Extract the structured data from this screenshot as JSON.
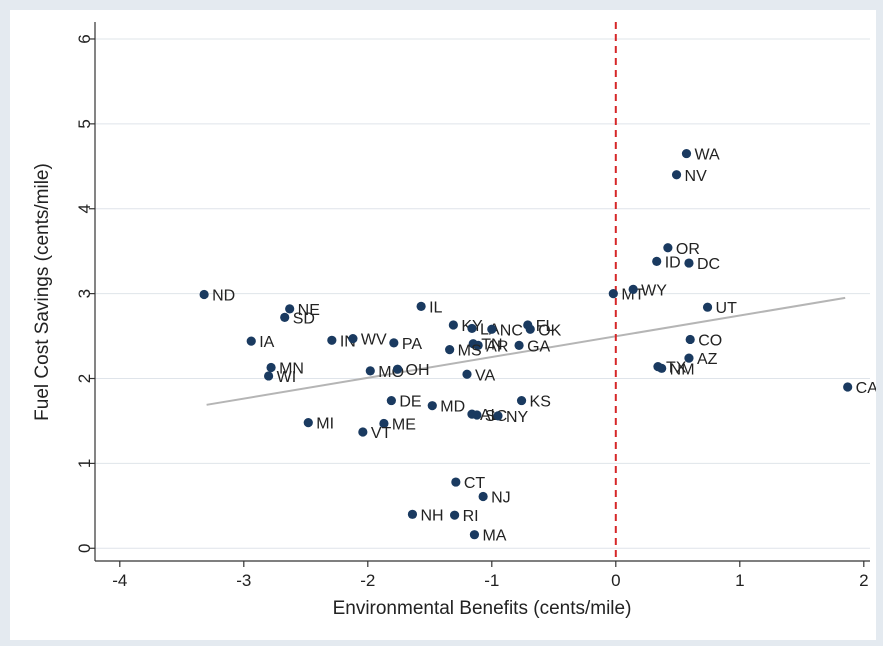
{
  "chart_data": {
    "type": "scatter",
    "title": "",
    "xlabel": "Environmental Benefits (cents/mile)",
    "ylabel": "Fuel Cost Savings (cents/mile)",
    "xlim": [
      -4.2,
      2.05
    ],
    "ylim": [
      -0.15,
      6.2
    ],
    "xticks": [
      "-4",
      "-3",
      "-2",
      "-1",
      "0",
      "1",
      "2"
    ],
    "yticks": [
      "0",
      "1",
      "2",
      "3",
      "4",
      "5",
      "6"
    ],
    "grid": "horizontal",
    "legend": "none",
    "reference_line": {
      "x": 0,
      "style": "dashed",
      "color": "#d62728"
    },
    "fit_line": {
      "x": [
        -3.3,
        1.85
      ],
      "y": [
        1.69,
        2.95
      ],
      "color": "#b5b5b5"
    },
    "colors": {
      "marker": "#1a3a60",
      "grid": "#dfe4ea",
      "axis": "#333333"
    },
    "points": [
      {
        "label": "ND",
        "x": -3.32,
        "y": 2.99
      },
      {
        "label": "NE",
        "x": -2.63,
        "y": 2.82
      },
      {
        "label": "SD",
        "x": -2.67,
        "y": 2.72
      },
      {
        "label": "IA",
        "x": -2.94,
        "y": 2.44
      },
      {
        "label": "MN",
        "x": -2.78,
        "y": 2.13
      },
      {
        "label": "WI",
        "x": -2.8,
        "y": 2.03
      },
      {
        "label": "IN",
        "x": -2.29,
        "y": 2.45
      },
      {
        "label": "WV",
        "x": -2.12,
        "y": 2.47
      },
      {
        "label": "PA",
        "x": -1.79,
        "y": 2.42
      },
      {
        "label": "MO",
        "x": -1.98,
        "y": 2.09
      },
      {
        "label": "OH",
        "x": -1.76,
        "y": 2.11
      },
      {
        "label": "IL",
        "x": -1.57,
        "y": 2.85
      },
      {
        "label": "KY",
        "x": -1.31,
        "y": 2.63
      },
      {
        "label": "LA",
        "x": -1.16,
        "y": 2.59
      },
      {
        "label": "NC",
        "x": -1.0,
        "y": 2.58
      },
      {
        "label": "FL",
        "x": -0.71,
        "y": 2.63
      },
      {
        "label": "OK",
        "x": -0.69,
        "y": 2.58
      },
      {
        "label": "TN",
        "x": -1.15,
        "y": 2.41
      },
      {
        "label": "AR",
        "x": -1.11,
        "y": 2.39
      },
      {
        "label": "MS",
        "x": -1.34,
        "y": 2.34
      },
      {
        "label": "GA",
        "x": -0.78,
        "y": 2.39
      },
      {
        "label": "VA",
        "x": -1.2,
        "y": 2.05
      },
      {
        "label": "DE",
        "x": -1.81,
        "y": 1.74
      },
      {
        "label": "MD",
        "x": -1.48,
        "y": 1.68
      },
      {
        "label": "KS",
        "x": -0.76,
        "y": 1.74
      },
      {
        "label": "AL",
        "x": -1.16,
        "y": 1.58
      },
      {
        "label": "SC",
        "x": -1.12,
        "y": 1.57
      },
      {
        "label": "NY",
        "x": -0.95,
        "y": 1.56
      },
      {
        "label": "ME",
        "x": -1.87,
        "y": 1.47
      },
      {
        "label": "MI",
        "x": -2.48,
        "y": 1.48
      },
      {
        "label": "VT",
        "x": -2.04,
        "y": 1.37
      },
      {
        "label": "CT",
        "x": -1.29,
        "y": 0.78
      },
      {
        "label": "NJ",
        "x": -1.07,
        "y": 0.61
      },
      {
        "label": "NH",
        "x": -1.64,
        "y": 0.4
      },
      {
        "label": "RI",
        "x": -1.3,
        "y": 0.39
      },
      {
        "label": "MA",
        "x": -1.14,
        "y": 0.16
      },
      {
        "label": "MT",
        "x": -0.02,
        "y": 3.0
      },
      {
        "label": "WY",
        "x": 0.14,
        "y": 3.05
      },
      {
        "label": "WA",
        "x": 0.57,
        "y": 4.65
      },
      {
        "label": "NV",
        "x": 0.49,
        "y": 4.4
      },
      {
        "label": "OR",
        "x": 0.42,
        "y": 3.54
      },
      {
        "label": "ID",
        "x": 0.33,
        "y": 3.38
      },
      {
        "label": "DC",
        "x": 0.59,
        "y": 3.36
      },
      {
        "label": "UT",
        "x": 0.74,
        "y": 2.84
      },
      {
        "label": "CO",
        "x": 0.6,
        "y": 2.46
      },
      {
        "label": "AZ",
        "x": 0.59,
        "y": 2.24
      },
      {
        "label": "TX",
        "x": 0.34,
        "y": 2.14
      },
      {
        "label": "NM",
        "x": 0.37,
        "y": 2.12
      },
      {
        "label": "CA",
        "x": 1.87,
        "y": 1.9
      }
    ]
  }
}
